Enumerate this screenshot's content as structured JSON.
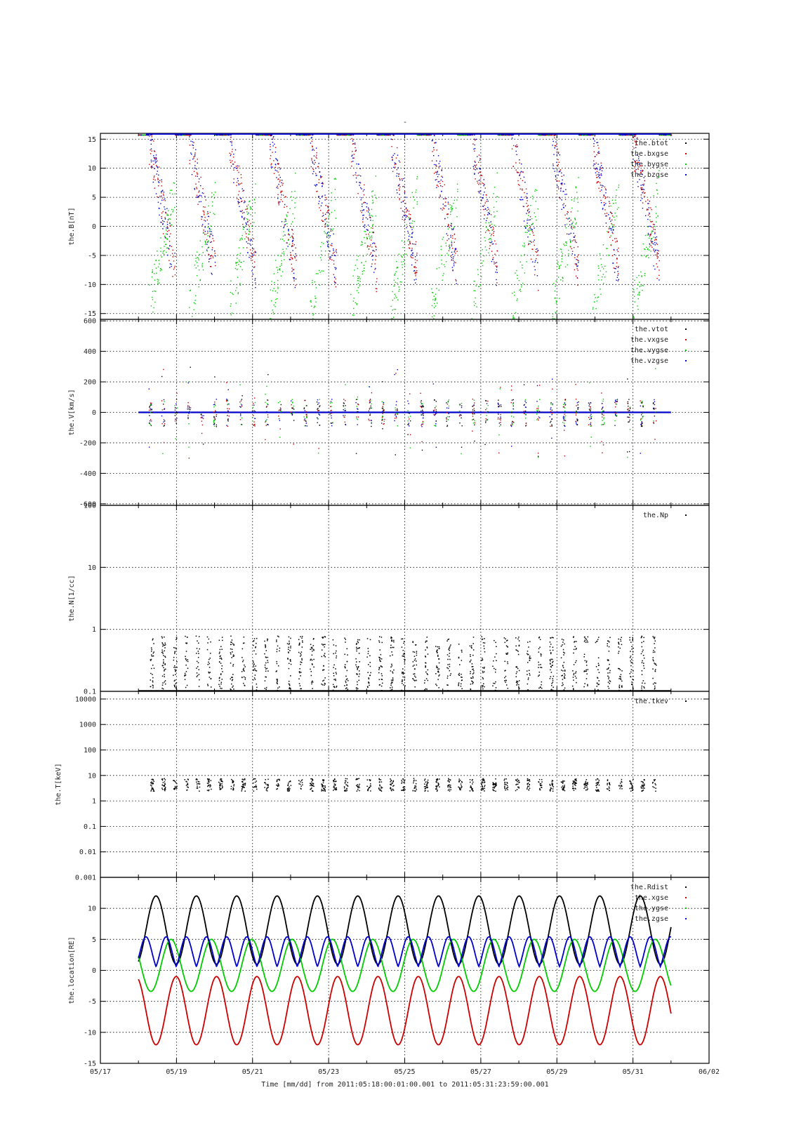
{
  "figure": {
    "title": "-",
    "xlabel": "Time [mm/dd]  from 2011:05:18:00:01:00.001  to  2011:05:31:23:59:00.001",
    "x_ticks": [
      "05/17",
      "05/19",
      "05/21",
      "05/23",
      "05/25",
      "05/27",
      "05/29",
      "05/31",
      "06/02"
    ]
  },
  "chart_data": [
    {
      "type": "scatter",
      "ylabel": "the.B[nT]",
      "yscale": "linear",
      "ylim": [
        -16,
        16
      ],
      "y_ticks": [
        "15",
        "10",
        "5",
        "0",
        "-5",
        "-10",
        "-15"
      ],
      "y_tick_values": [
        15,
        10,
        5,
        0,
        -5,
        -10,
        -15
      ],
      "xlim": [
        "05/17",
        "06/02"
      ],
      "grid": true,
      "legend_position": "top-right",
      "series": [
        {
          "name": "the.btot",
          "color": "#000000"
        },
        {
          "name": "the.bxgse",
          "color": "#cc0000"
        },
        {
          "name": "the.bygse",
          "color": "#00cc00"
        },
        {
          "name": "the.bzgse",
          "color": "#0000cc"
        }
      ]
    },
    {
      "type": "scatter",
      "ylabel": "the.V[km/s]",
      "yscale": "linear",
      "ylim": [
        -610,
        610
      ],
      "y_ticks": [
        "600",
        "400",
        "200",
        "0",
        "-200",
        "-400",
        "-600"
      ],
      "y_tick_values": [
        600,
        400,
        200,
        0,
        -200,
        -400,
        -600
      ],
      "xlim": [
        "05/17",
        "06/02"
      ],
      "grid": true,
      "legend_position": "top-right",
      "series": [
        {
          "name": "the.vtot",
          "color": "#000000"
        },
        {
          "name": "the.vxgse",
          "color": "#cc0000"
        },
        {
          "name": "the.vygse",
          "color": "#00cc00"
        },
        {
          "name": "the.vzgse",
          "color": "#0000cc"
        }
      ]
    },
    {
      "type": "scatter",
      "ylabel": "the.N[1/cc]",
      "yscale": "log",
      "ylim": [
        0.1,
        100
      ],
      "y_ticks": [
        "100",
        "10",
        "1",
        "0.1"
      ],
      "y_tick_values": [
        100,
        10,
        1,
        0.1
      ],
      "xlim": [
        "05/17",
        "06/02"
      ],
      "grid": true,
      "legend_position": "top-right",
      "series": [
        {
          "name": "the.Np",
          "color": "#000000"
        }
      ]
    },
    {
      "type": "scatter",
      "ylabel": "the.T[keV]",
      "yscale": "log",
      "ylim": [
        0.001,
        20000
      ],
      "y_ticks": [
        "10000",
        "1000",
        "100",
        "10",
        "1",
        "0.1",
        "0.01",
        "0.001"
      ],
      "y_tick_values": [
        10000,
        1000,
        100,
        10,
        1,
        0.1,
        0.01,
        0.001
      ],
      "xlim": [
        "05/17",
        "06/02"
      ],
      "grid": true,
      "legend_position": "top-right",
      "series": [
        {
          "name": "the.tkev",
          "color": "#000000"
        }
      ]
    },
    {
      "type": "line",
      "ylabel": "the.location[RE]",
      "yscale": "linear",
      "ylim": [
        -15,
        15
      ],
      "y_ticks": [
        "10",
        "5",
        "0",
        "-5",
        "-10",
        "-15"
      ],
      "y_tick_values": [
        10,
        5,
        0,
        -5,
        -10,
        -15
      ],
      "xlim": [
        "05/17",
        "06/02"
      ],
      "grid": true,
      "legend_position": "top-right",
      "series": [
        {
          "name": "the.Rdist",
          "color": "#000000"
        },
        {
          "name": "the.xgse",
          "color": "#cc0000"
        },
        {
          "name": "the.ygse",
          "color": "#00cc00"
        },
        {
          "name": "the.zgse",
          "color": "#0000cc"
        }
      ]
    }
  ]
}
